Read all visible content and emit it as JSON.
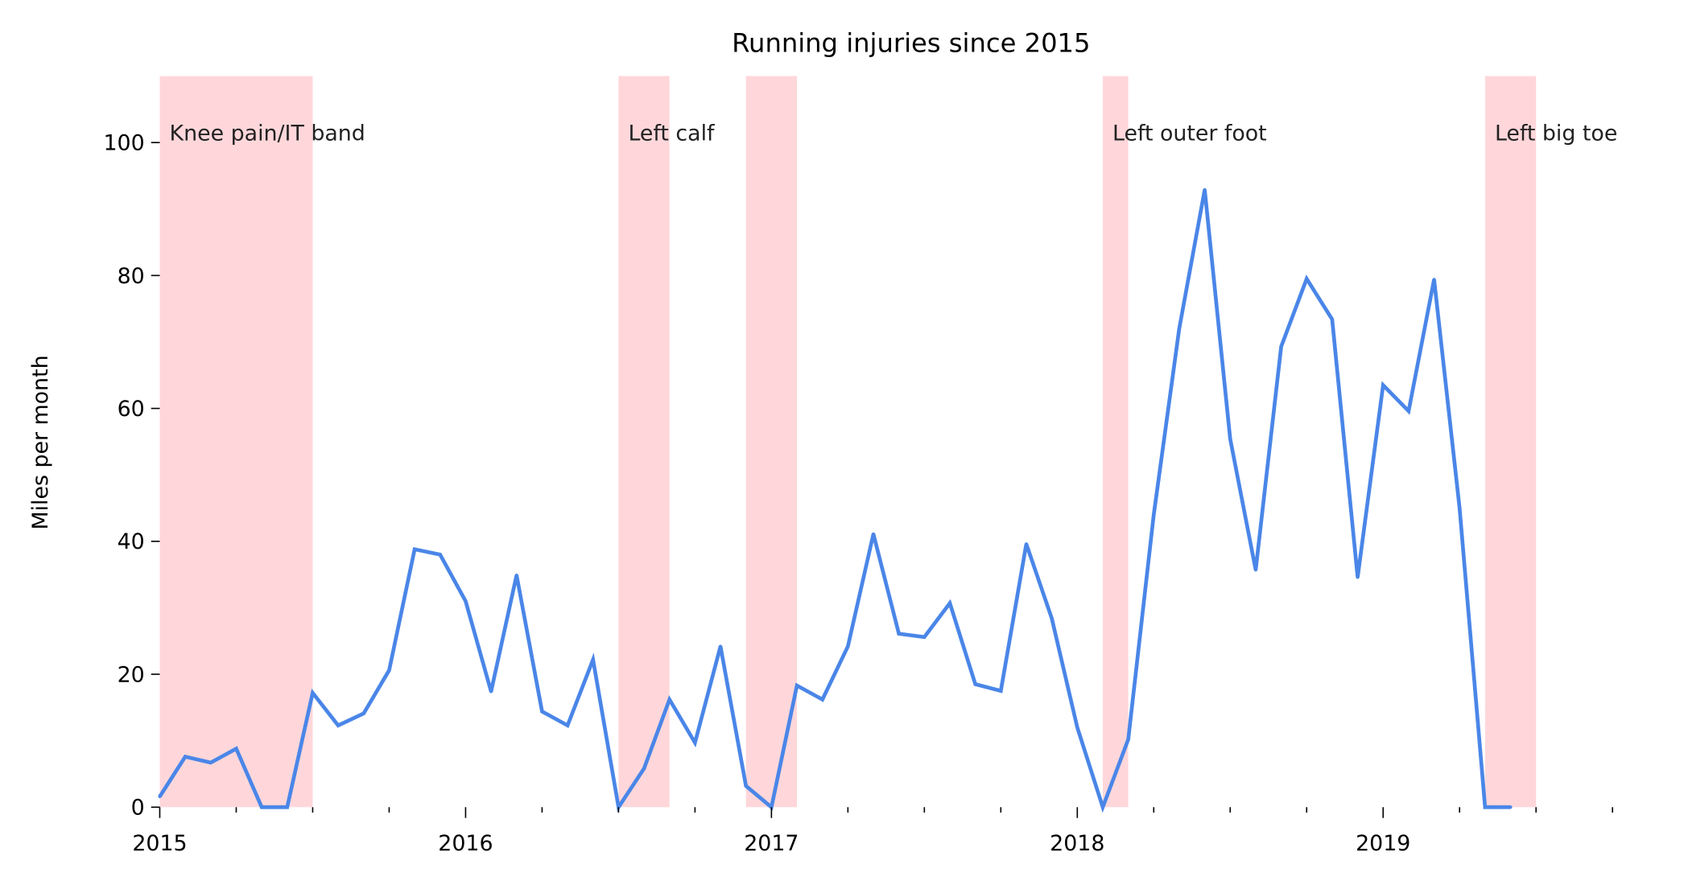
{
  "chart_data": {
    "type": "line",
    "title": "Running injuries since 2015",
    "xlabel": "",
    "ylabel": "Miles per month",
    "xlim": [
      "2015-01",
      "2019-10"
    ],
    "ylim": [
      0,
      110
    ],
    "grid": false,
    "x_ticks": [
      "2015",
      "2016",
      "2017",
      "2018",
      "2019"
    ],
    "y_ticks": [
      "0",
      "20",
      "40",
      "60",
      "80",
      "100"
    ],
    "line_color": "#4a86e8",
    "shade_color": "#ffd7da",
    "series": [
      {
        "x": [
          "2015-01",
          "2015-02",
          "2015-03",
          "2015-04",
          "2015-05",
          "2015-06",
          "2015-07",
          "2015-08",
          "2015-09",
          "2015-10",
          "2015-11",
          "2015-12",
          "2016-01",
          "2016-02",
          "2016-03",
          "2016-04",
          "2016-05",
          "2016-06",
          "2016-07",
          "2016-08",
          "2016-09",
          "2016-10",
          "2016-11",
          "2016-12",
          "2017-01",
          "2017-02",
          "2017-03",
          "2017-04",
          "2017-05",
          "2017-06",
          "2017-07",
          "2017-08",
          "2017-09",
          "2017-10",
          "2017-11",
          "2017-12",
          "2018-01",
          "2018-02",
          "2018-03",
          "2018-04",
          "2018-05",
          "2018-06",
          "2018-07",
          "2018-08",
          "2018-09",
          "2018-10",
          "2018-11",
          "2018-12",
          "2019-01",
          "2019-02",
          "2019-03",
          "2019-04",
          "2019-05",
          "2019-06"
        ],
        "values": [
          1.6,
          7.6,
          6.7,
          8.8,
          0,
          0,
          17.2,
          12.3,
          14.1,
          20.6,
          38.8,
          38.0,
          31.0,
          17.4,
          34.9,
          14.4,
          12.3,
          22.2,
          0,
          5.8,
          16.2,
          9.7,
          24.2,
          3.2,
          0,
          18.3,
          16.2,
          24.2,
          41.1,
          26.1,
          25.6,
          30.7,
          18.5,
          17.5,
          39.6,
          28.4,
          12.0,
          0,
          10.2,
          44.0,
          72.0,
          92.9,
          55.4,
          35.7,
          69.3,
          79.5,
          73.4,
          34.6,
          63.5,
          59.6,
          79.4,
          45.0,
          0,
          0
        ]
      }
    ],
    "injuries": [
      {
        "label": "Knee pain/IT band",
        "start": "2015-01",
        "end": "2015-07"
      },
      {
        "label": "Left calf",
        "start": "2016-07",
        "end": "2016-09"
      },
      {
        "label": "",
        "start": "2016-12",
        "end": "2017-02"
      },
      {
        "label": "Left outer foot",
        "start": "2018-02",
        "end": "2018-03"
      },
      {
        "label": "Left big toe",
        "start": "2019-05",
        "end": "2019-07"
      }
    ]
  }
}
